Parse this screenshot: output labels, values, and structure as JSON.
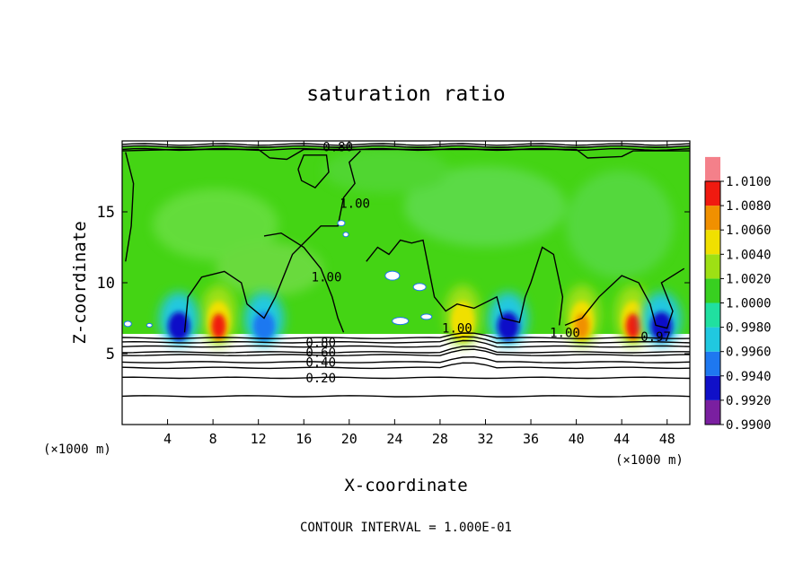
{
  "chart_data": {
    "type": "heatmap",
    "title": "saturation ratio",
    "xlabel": "X-coordinate",
    "ylabel": "Z-coordinate",
    "x_unit_left": "(×1000 m)",
    "x_unit_right": "(×1000 m)",
    "xlim": [
      0,
      50
    ],
    "ylim": [
      0,
      20
    ],
    "xticks": [
      4,
      8,
      12,
      16,
      20,
      24,
      28,
      32,
      36,
      40,
      44,
      48
    ],
    "yticks": [
      5,
      10,
      15
    ],
    "footer": "CONTOUR INTERVAL = 1.000E-01",
    "colorbar": {
      "levels": [
        "0.9900",
        "0.9920",
        "0.9940",
        "0.9960",
        "0.9980",
        "1.0000",
        "1.0020",
        "1.0040",
        "1.0060",
        "1.0080",
        "1.0100"
      ],
      "colors": [
        "#7a1fa0",
        "#1010c8",
        "#1e78f0",
        "#20c8e0",
        "#20e0a0",
        "#38d020",
        "#9ee014",
        "#f0e000",
        "#f09000",
        "#f01a10",
        "#f4808a"
      ]
    },
    "contour_labels": [
      {
        "text": "0.80",
        "x": 19.0,
        "z": 19.6
      },
      {
        "text": "1.00",
        "x": 20.5,
        "z": 15.6
      },
      {
        "text": "1.00",
        "x": 18.0,
        "z": 10.4
      },
      {
        "text": "1.00",
        "x": 29.5,
        "z": 6.8
      },
      {
        "text": "1.00",
        "x": 39.0,
        "z": 6.5
      },
      {
        "text": "0.97",
        "x": 47.0,
        "z": 6.2
      },
      {
        "text": "0.80",
        "x": 17.5,
        "z": 5.8
      },
      {
        "text": "0.60",
        "x": 17.5,
        "z": 5.1
      },
      {
        "text": "0.40",
        "x": 17.5,
        "z": 4.4
      },
      {
        "text": "0.20",
        "x": 17.5,
        "z": 3.3
      }
    ],
    "moist_maxima": [
      {
        "x": 8.5,
        "value": 1.008
      },
      {
        "x": 40.5,
        "value": 1.007
      },
      {
        "x": 45.0,
        "value": 1.008
      },
      {
        "x": 30.0,
        "value": 1.004
      }
    ],
    "dry_minima": [
      {
        "x": 5.0,
        "value": 0.993
      },
      {
        "x": 12.5,
        "value": 0.995
      },
      {
        "x": 34.0,
        "value": 0.992
      },
      {
        "x": 47.5,
        "value": 0.993
      }
    ]
  }
}
